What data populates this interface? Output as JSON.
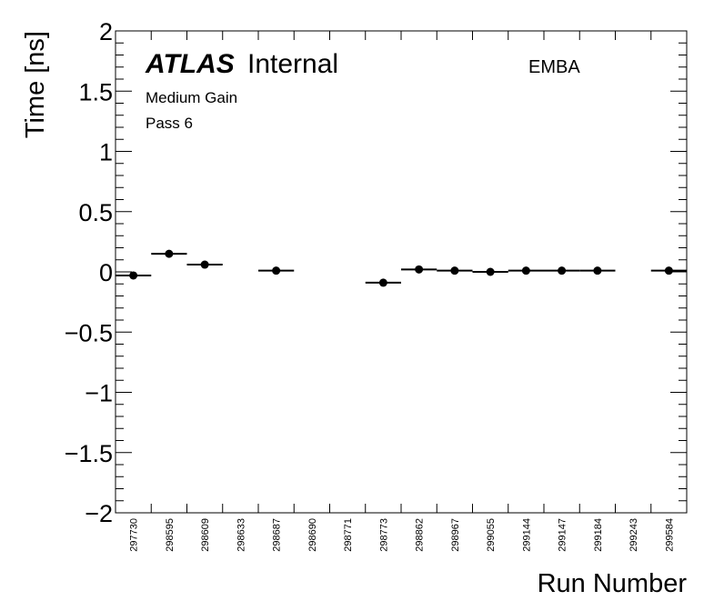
{
  "chart_data": {
    "type": "scatter",
    "title": "",
    "xlabel": "Run Number",
    "ylabel": "Time [ns]",
    "ylim": [
      -2,
      2
    ],
    "yticks": [
      {
        "value": -2,
        "label": "−2"
      },
      {
        "value": -1.5,
        "label": "−1.5"
      },
      {
        "value": -1,
        "label": "−1"
      },
      {
        "value": -0.5,
        "label": "−0.5"
      },
      {
        "value": 0,
        "label": "0"
      },
      {
        "value": 0.5,
        "label": "0.5"
      },
      {
        "value": 1,
        "label": "1"
      },
      {
        "value": 1.5,
        "label": "1.5"
      },
      {
        "value": 2,
        "label": "2"
      }
    ],
    "categories": [
      "297730",
      "298595",
      "298609",
      "298633",
      "298687",
      "298690",
      "298771",
      "298773",
      "298862",
      "298967",
      "299055",
      "299144",
      "299147",
      "299184",
      "299243",
      "299584"
    ],
    "series": [
      {
        "values": [
          -0.03,
          0.15,
          0.06,
          null,
          0.01,
          null,
          null,
          -0.09,
          0.02,
          0.01,
          0.0,
          0.01,
          0.01,
          0.01,
          null,
          0.01
        ],
        "errors": [
          0.03,
          0.01,
          0.01,
          null,
          0.01,
          null,
          null,
          0.01,
          0.01,
          0.01,
          0.01,
          0.01,
          0.01,
          0.01,
          null,
          0.01
        ]
      }
    ],
    "annotations": {
      "experiment": "ATLAS",
      "status": "Internal",
      "gain": "Medium Gain",
      "pass": "Pass 6",
      "region": "EMBA"
    },
    "grid": false
  }
}
